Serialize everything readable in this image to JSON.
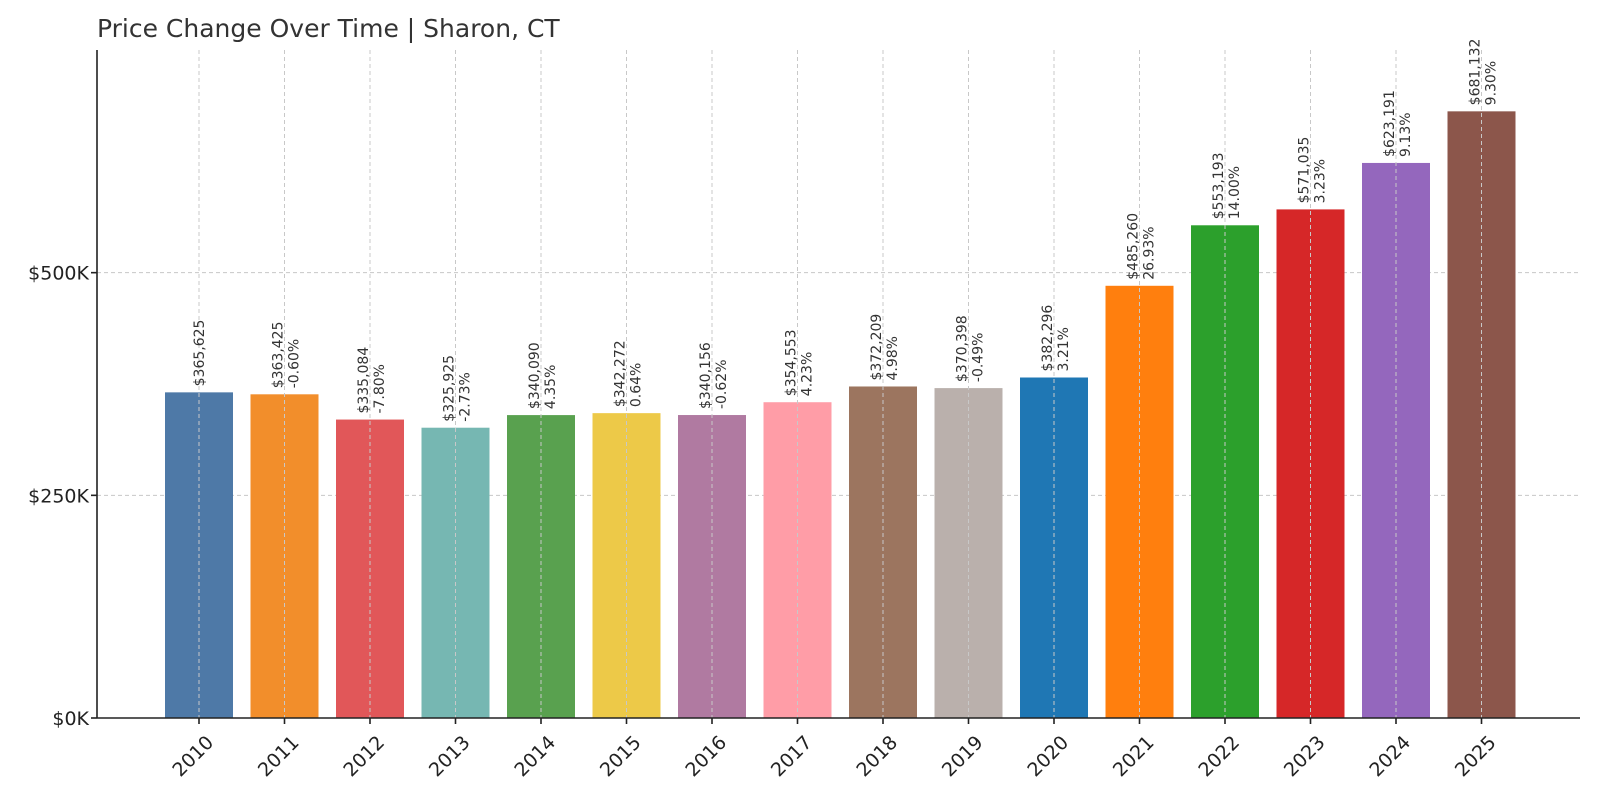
{
  "chart_data": {
    "type": "bar",
    "title": "Price Change Over Time | Sharon, CT",
    "xlabel": "",
    "ylabel": "",
    "categories": [
      "2010",
      "2011",
      "2012",
      "2013",
      "2014",
      "2015",
      "2016",
      "2017",
      "2018",
      "2019",
      "2020",
      "2021",
      "2022",
      "2023",
      "2024",
      "2025"
    ],
    "values": [
      365625,
      363425,
      335084,
      325925,
      340090,
      342272,
      340156,
      354553,
      372209,
      370398,
      382296,
      485260,
      553193,
      571035,
      623191,
      681132
    ],
    "value_labels": [
      "$365,625",
      "$363,425",
      "$335,084",
      "$325,925",
      "$340,090",
      "$342,272",
      "$340,156",
      "$354,553",
      "$372,209",
      "$370,398",
      "$382,296",
      "$485,260",
      "$553,193",
      "$571,035",
      "$623,191",
      "$681,132"
    ],
    "change_labels": [
      "",
      "-0.60%",
      "-7.80%",
      "-2.73%",
      "4.35%",
      "0.64%",
      "-0.62%",
      "4.23%",
      "4.98%",
      "-0.49%",
      "3.21%",
      "26.93%",
      "14.00%",
      "3.23%",
      "9.13%",
      "9.30%"
    ],
    "colors": [
      "#4e79a7",
      "#f28e2b",
      "#e15759",
      "#76b7b2",
      "#59a14f",
      "#edc948",
      "#b07aa1",
      "#ff9da7",
      "#9c755f",
      "#bab0ac",
      "#1f77b4",
      "#ff7f0e",
      "#2ca02c",
      "#d62728",
      "#9467bd",
      "#8c564b"
    ],
    "yticks": [
      0,
      250000,
      500000
    ],
    "ytick_labels": [
      "$0K",
      "$250K",
      "$500K"
    ],
    "ylim": [
      0,
      750000
    ],
    "grid": true,
    "legend": "none"
  }
}
